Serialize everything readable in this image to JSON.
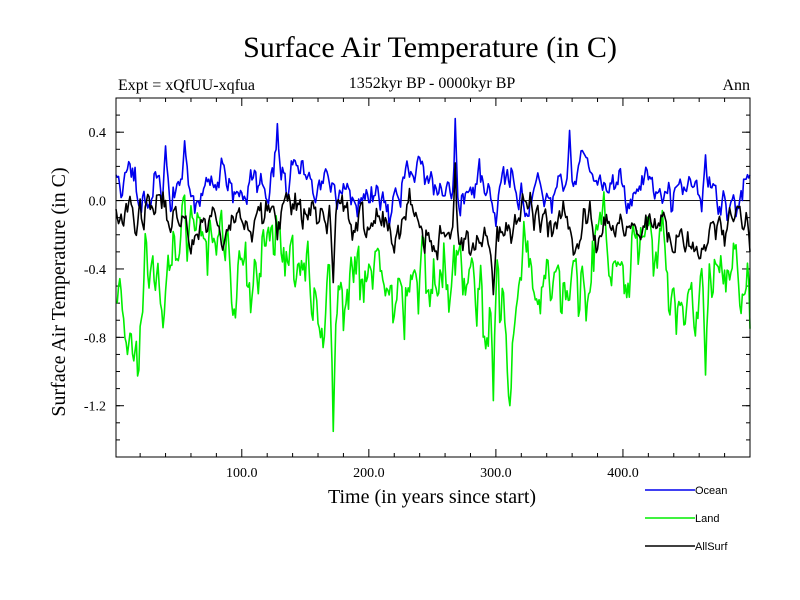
{
  "chart_data": {
    "type": "line",
    "title": "Surface Air Temperature (in C)",
    "subtitle_left": "Expt = xQfUU-xqfua",
    "subtitle_center": "1352kyr BP - 0000kyr BP",
    "subtitle_right": "Ann",
    "xlabel": "Time (in years since start)",
    "ylabel": "Surface Air Temperature (in C)",
    "xlim": [
      1,
      500
    ],
    "ylim": [
      -1.5,
      0.6
    ],
    "xticks": [
      100,
      200,
      300,
      400
    ],
    "xtick_labels": [
      "100.0",
      "200.0",
      "300.0",
      "400.0"
    ],
    "yticks": [
      0.4,
      0.0,
      -0.4,
      -0.8,
      -1.2
    ],
    "ytick_labels": [
      "0.4",
      "0.0",
      "-0.4",
      "-0.8",
      "-1.2"
    ],
    "zero_line": 0.0,
    "series": [
      {
        "name": "Ocean",
        "color": "#0000ee",
        "mean": 0.1,
        "amplitude": 0.1,
        "seed": 11,
        "keypoints": [
          [
            1,
            0.15
          ],
          [
            40,
            0.32
          ],
          [
            55,
            0.35
          ],
          [
            128,
            0.45
          ],
          [
            170,
            0.05
          ],
          [
            175,
            -0.05
          ],
          [
            268,
            0.48
          ],
          [
            300,
            -0.15
          ],
          [
            358,
            0.41
          ],
          [
            500,
            0.15
          ]
        ]
      },
      {
        "name": "Land",
        "color": "#00ee00",
        "mean": -0.5,
        "amplitude": 0.22,
        "seed": 23,
        "keypoints": [
          [
            1,
            -0.6
          ],
          [
            10,
            -0.9
          ],
          [
            172,
            -1.35
          ],
          [
            298,
            -1.17
          ],
          [
            465,
            -1.02
          ],
          [
            500,
            -0.75
          ]
        ]
      },
      {
        "name": "AllSurf",
        "color": "#000000",
        "mean": -0.1,
        "amplitude": 0.1,
        "seed": 37,
        "keypoints": [
          [
            1,
            -0.05
          ],
          [
            172,
            -0.48
          ],
          [
            268,
            0.22
          ],
          [
            298,
            -0.55
          ],
          [
            500,
            -0.3
          ]
        ]
      }
    ]
  }
}
